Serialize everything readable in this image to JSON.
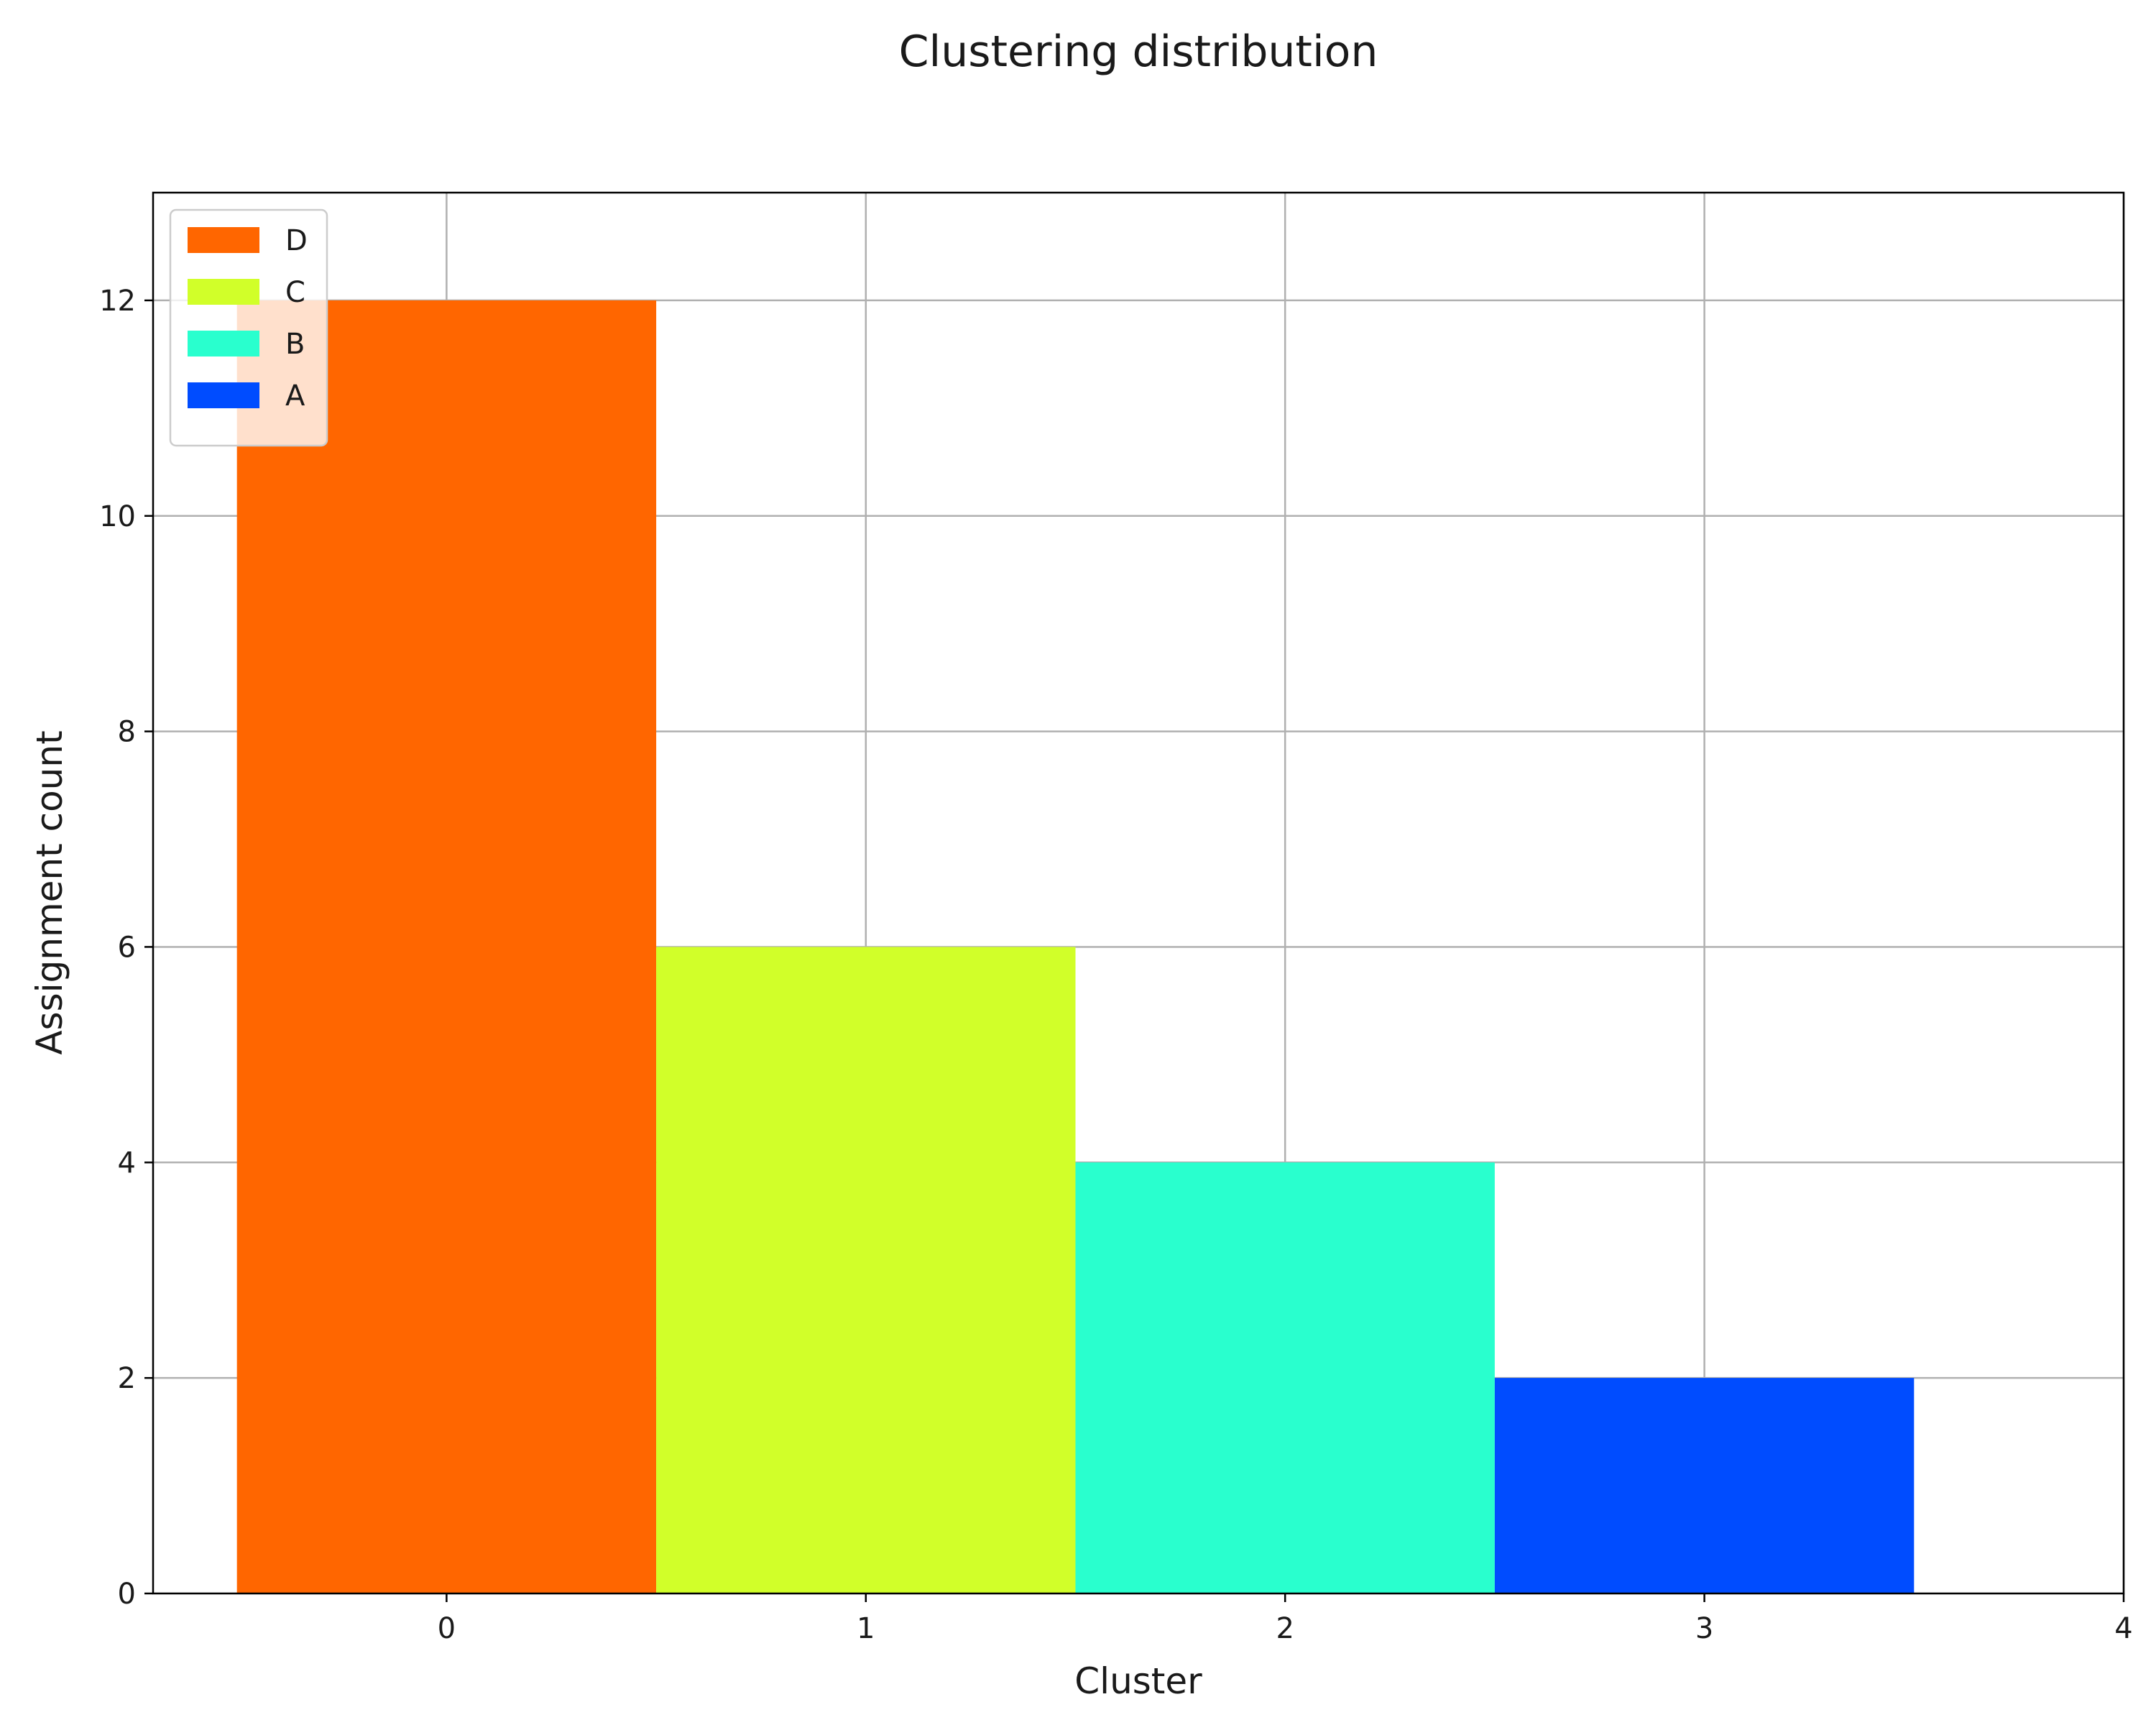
{
  "chart_data": {
    "type": "bar",
    "title": "Clustering distribution",
    "xlabel": "Cluster",
    "ylabel": "Assignment count",
    "categories": [
      0,
      1,
      2,
      3
    ],
    "series": [
      {
        "name": "D",
        "x": 0,
        "value": 12,
        "color": "#ff6600"
      },
      {
        "name": "C",
        "x": 1,
        "value": 6,
        "color": "#d1ff29"
      },
      {
        "name": "B",
        "x": 2,
        "value": 4,
        "color": "#29ffce"
      },
      {
        "name": "A",
        "x": 3,
        "value": 2,
        "color": "#004cff"
      }
    ],
    "bar_width": 1,
    "xlim": [
      -0.7,
      4
    ],
    "ylim": [
      0,
      13
    ],
    "xticks": [
      "0",
      "1",
      "2",
      "3",
      "4"
    ],
    "yticks": [
      "0",
      "2",
      "4",
      "6",
      "8",
      "10",
      "12"
    ],
    "grid": true,
    "legend_position": "top-left"
  }
}
